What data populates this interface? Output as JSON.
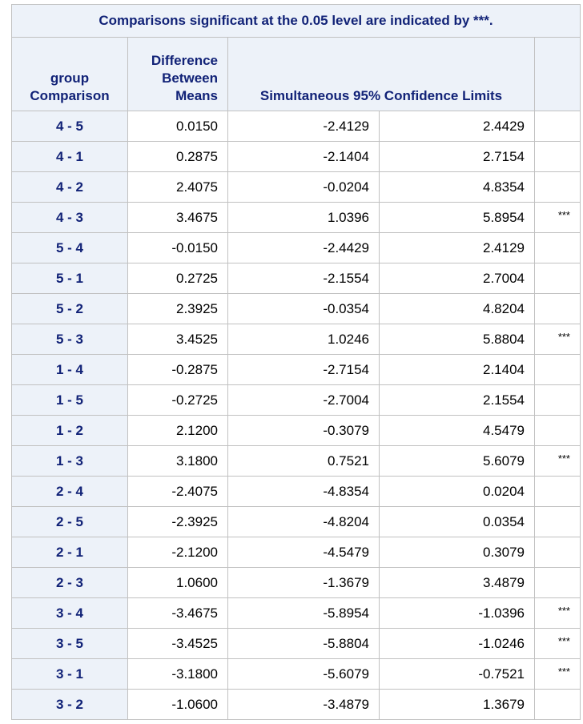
{
  "table": {
    "title": "Comparisons significant at the 0.05 level are indicated by ***.",
    "headers": {
      "group_comparison": [
        "group",
        "Comparison"
      ],
      "difference_between_means": [
        "Difference",
        "Between",
        "Means"
      ],
      "confidence_limits": "Simultaneous 95% Confidence Limits"
    },
    "rows": [
      {
        "comparison": "4 - 5",
        "difference": "0.0150",
        "lower": "-2.4129",
        "upper": "2.4429",
        "flag": ""
      },
      {
        "comparison": "4 - 1",
        "difference": "0.2875",
        "lower": "-2.1404",
        "upper": "2.7154",
        "flag": ""
      },
      {
        "comparison": "4 - 2",
        "difference": "2.4075",
        "lower": "-0.0204",
        "upper": "4.8354",
        "flag": ""
      },
      {
        "comparison": "4 - 3",
        "difference": "3.4675",
        "lower": "1.0396",
        "upper": "5.8954",
        "flag": "***"
      },
      {
        "comparison": "5 - 4",
        "difference": "-0.0150",
        "lower": "-2.4429",
        "upper": "2.4129",
        "flag": ""
      },
      {
        "comparison": "5 - 1",
        "difference": "0.2725",
        "lower": "-2.1554",
        "upper": "2.7004",
        "flag": ""
      },
      {
        "comparison": "5 - 2",
        "difference": "2.3925",
        "lower": "-0.0354",
        "upper": "4.8204",
        "flag": ""
      },
      {
        "comparison": "5 - 3",
        "difference": "3.4525",
        "lower": "1.0246",
        "upper": "5.8804",
        "flag": "***"
      },
      {
        "comparison": "1 - 4",
        "difference": "-0.2875",
        "lower": "-2.7154",
        "upper": "2.1404",
        "flag": ""
      },
      {
        "comparison": "1 - 5",
        "difference": "-0.2725",
        "lower": "-2.7004",
        "upper": "2.1554",
        "flag": ""
      },
      {
        "comparison": "1 - 2",
        "difference": "2.1200",
        "lower": "-0.3079",
        "upper": "4.5479",
        "flag": ""
      },
      {
        "comparison": "1 - 3",
        "difference": "3.1800",
        "lower": "0.7521",
        "upper": "5.6079",
        "flag": "***"
      },
      {
        "comparison": "2 - 4",
        "difference": "-2.4075",
        "lower": "-4.8354",
        "upper": "0.0204",
        "flag": ""
      },
      {
        "comparison": "2 - 5",
        "difference": "-2.3925",
        "lower": "-4.8204",
        "upper": "0.0354",
        "flag": ""
      },
      {
        "comparison": "2 - 1",
        "difference": "-2.1200",
        "lower": "-4.5479",
        "upper": "0.3079",
        "flag": ""
      },
      {
        "comparison": "2 - 3",
        "difference": "1.0600",
        "lower": "-1.3679",
        "upper": "3.4879",
        "flag": ""
      },
      {
        "comparison": "3 - 4",
        "difference": "-3.4675",
        "lower": "-5.8954",
        "upper": "-1.0396",
        "flag": "***"
      },
      {
        "comparison": "3 - 5",
        "difference": "-3.4525",
        "lower": "-5.8804",
        "upper": "-1.0246",
        "flag": "***"
      },
      {
        "comparison": "3 - 1",
        "difference": "-3.1800",
        "lower": "-5.6079",
        "upper": "-0.7521",
        "flag": "***"
      },
      {
        "comparison": "3 - 2",
        "difference": "-1.0600",
        "lower": "-3.4879",
        "upper": "1.3679",
        "flag": ""
      }
    ]
  },
  "colors": {
    "header_background": "#edf2f9",
    "header_text": "#112277",
    "border": "#c1c1c1"
  }
}
